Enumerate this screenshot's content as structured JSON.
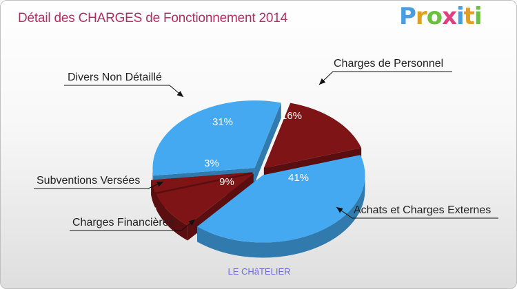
{
  "title": "Détail des CHARGES de Fonctionnement 2014",
  "logo": {
    "letters": [
      "P",
      "r",
      "o",
      "x",
      "i",
      "t",
      "i"
    ],
    "colors": [
      "#4a9de0",
      "#e0a020",
      "#6cc040",
      "#e04080",
      "#4a9de0",
      "#e0a020",
      "#6cc040"
    ]
  },
  "subtitle": "LE CHâTELIER",
  "chart_data": {
    "type": "pie",
    "title": "Détail des CHARGES de Fonctionnement 2014",
    "slices": [
      {
        "label": "Charges de Personnel",
        "value": 16,
        "display": "16%",
        "color": "#7e1416"
      },
      {
        "label": "Achats et Charges Externes",
        "value": 41,
        "display": "41%",
        "color": "#44a9f1"
      },
      {
        "label": "Charges Financières",
        "value": 9,
        "display": "9%",
        "color": "#7e1416"
      },
      {
        "label": "Subventions Versées",
        "value": 3,
        "display": "3%",
        "color": "#7e1416"
      },
      {
        "label": "Divers Non Détaillé",
        "value": 31,
        "display": "31%",
        "color": "#44a9f1"
      }
    ]
  }
}
